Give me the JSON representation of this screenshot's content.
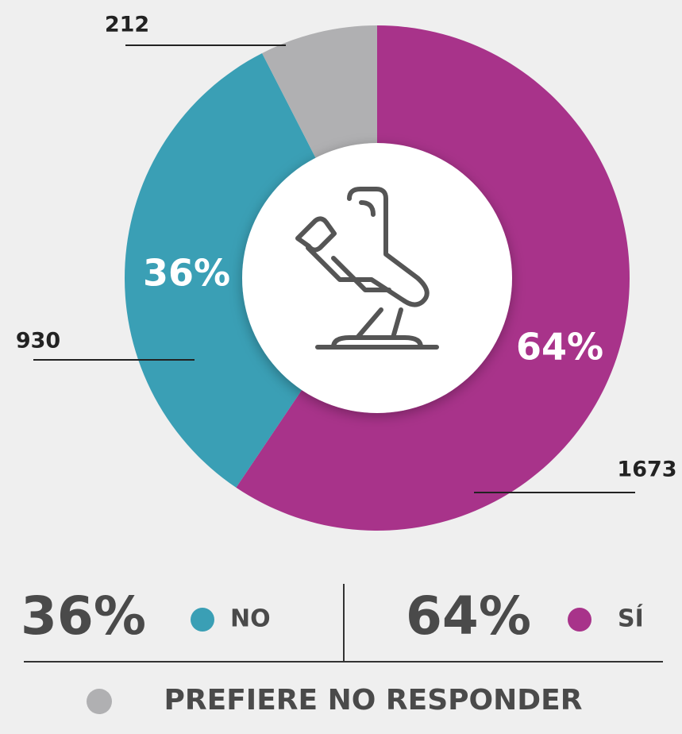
{
  "chart_data": {
    "type": "donut",
    "categories": [
      "SÍ",
      "NO",
      "PREFIERE NO RESPONDER"
    ],
    "values": [
      1673,
      930,
      212
    ],
    "colors": [
      "#a8338a",
      "#3a9fb5",
      "#b0b0b2"
    ],
    "percentages": [
      64,
      36,
      null
    ],
    "percentage_labels": [
      "64%",
      "36%",
      null
    ]
  }
}
